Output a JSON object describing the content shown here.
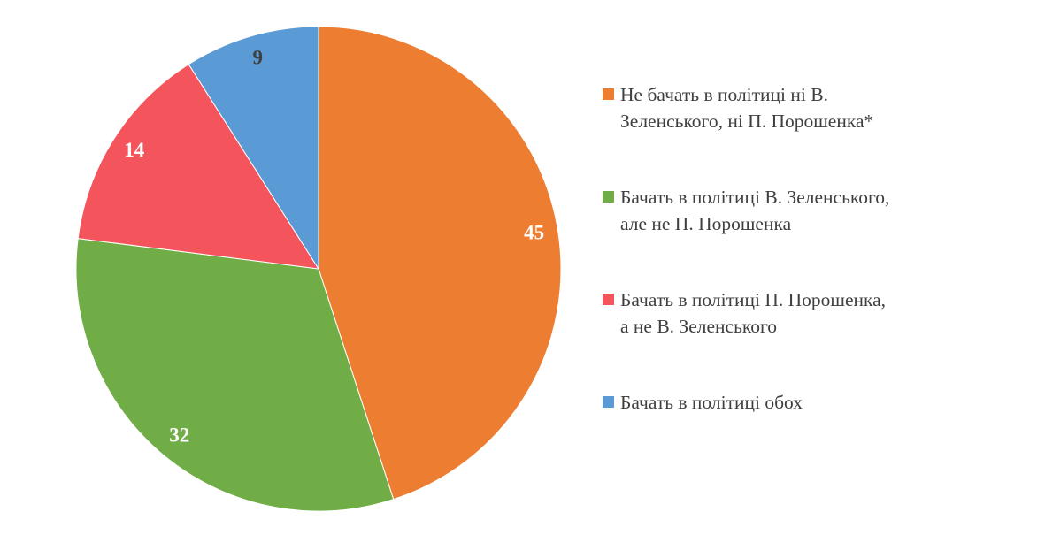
{
  "chart_data": {
    "type": "pie",
    "title": "",
    "values": [
      45,
      32,
      14,
      9
    ],
    "labels": [
      "Не бачать в політиці ні В.\nЗеленського, ні П. Порошенка*",
      "Бачать в політиці В. Зеленського,\nале не П. Порошенка",
      "Бачать в політиці П. Порошенка,\nа не В. Зеленського",
      "Бачать в політиці обох"
    ],
    "colors": [
      "#ED7D31",
      "#70AD47",
      "#F4545C",
      "#5B9BD5"
    ],
    "value_label_colors": [
      "#FFFFFF",
      "#FFFFFF",
      "#FFFFFF",
      "#404040"
    ],
    "start_angle_deg": -90,
    "direction": "clockwise",
    "legend_position": "right",
    "background": "#FFFFFF"
  }
}
